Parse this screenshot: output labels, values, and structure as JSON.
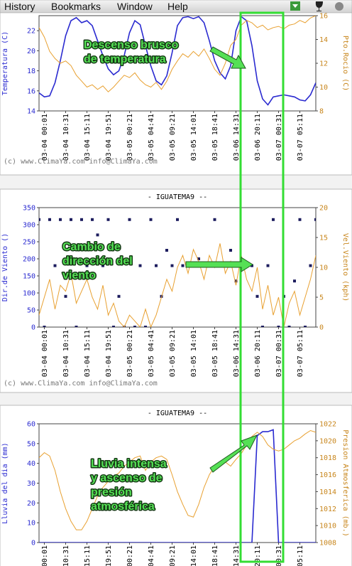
{
  "menu": [
    "History",
    "Bookmarks",
    "Window",
    "Help"
  ],
  "chart_data": [
    {
      "type": "line",
      "footer": "(c) www.ClimaYa.com  info@ClimaYa.com",
      "ylabel": "Temperatura (C)",
      "y2label": "Pto.Rocio (C)",
      "annotation": [
        "Descenso brusco",
        "de temperatura"
      ],
      "xlim": [
        0,
        52
      ],
      "xticks": [
        {
          "value": 1,
          "label": "03-04 00:01"
        },
        {
          "value": 5,
          "label": "03-04 10:31"
        },
        {
          "value": 9,
          "label": "03-04 15:11"
        },
        {
          "value": 13,
          "label": "03-04 19:51"
        },
        {
          "value": 17,
          "label": "03-05 00:21"
        },
        {
          "value": 21,
          "label": "03-05 04:41"
        },
        {
          "value": 25,
          "label": "03-05 09:21"
        },
        {
          "value": 29,
          "label": "03-05 14:01"
        },
        {
          "value": 33,
          "label": "03-05 18:41"
        },
        {
          "value": 37,
          "label": "03-06 14:31"
        },
        {
          "value": 41,
          "label": "03-06 20:11"
        },
        {
          "value": 45,
          "label": "03-07 00:31"
        },
        {
          "value": 49,
          "label": "03-07 05:11"
        }
      ],
      "ylim": [
        14,
        23.5
      ],
      "yticks": [
        14,
        16,
        18,
        20,
        22
      ],
      "y2lim": [
        8,
        16
      ],
      "y2ticks": [
        8,
        10,
        12,
        14,
        16
      ],
      "series": [
        {
          "color": "#2a2ad0",
          "values": [
            15.8,
            15.4,
            15.5,
            16.8,
            19,
            21.5,
            23,
            23.3,
            22.8,
            23,
            22.5,
            21,
            19.5,
            18.2,
            17.6,
            18,
            19.5,
            21.8,
            23,
            22.6,
            20.5,
            18.5,
            17,
            16.6,
            17.5,
            19.8,
            22.5,
            23.3,
            23.4,
            23.2,
            23.4,
            22.8,
            21,
            19,
            17.8,
            17.2,
            18.5,
            22,
            23.4,
            23,
            20.5,
            17,
            15.2,
            14.6,
            15.4,
            15.5,
            15.6,
            15.5,
            15.4,
            15.1,
            15,
            15.6,
            16.8
          ]
        },
        {
          "color": "#e8a030",
          "axis": "y2",
          "values": [
            15,
            14.2,
            13,
            12.4,
            12,
            12.2,
            11.8,
            11,
            10.5,
            10,
            10.2,
            9.8,
            10.1,
            9.6,
            10,
            10.5,
            11,
            10.8,
            11.2,
            10.6,
            10.2,
            10,
            10.4,
            9.8,
            10.5,
            11.5,
            12.2,
            12.8,
            12.5,
            13,
            12.6,
            13.2,
            12.4,
            11.5,
            11,
            12,
            13.5,
            14,
            15.2,
            15.6,
            15.4,
            15,
            15.2,
            14.8,
            15,
            15.1,
            14.9,
            15.2,
            15.3,
            15.6,
            15.4,
            15.8,
            16
          ]
        }
      ]
    },
    {
      "type": "line",
      "title": "- IGUATEMA9 --",
      "footer": "(c) www.ClimaYa.com  info@ClimaYa.com",
      "ylabel": "Dir.de Viento ()",
      "y2label": "Vel.Viento (kph)",
      "annotation": [
        "Cambio de",
        "dirección del",
        "viento"
      ],
      "xlim": [
        0,
        52
      ],
      "xticks": [
        {
          "value": 1,
          "label": "03-04 00:01"
        },
        {
          "value": 5,
          "label": "03-04 10:31"
        },
        {
          "value": 9,
          "label": "03-04 15:11"
        },
        {
          "value": 13,
          "label": "03-04 19:51"
        },
        {
          "value": 17,
          "label": "03-05 00:21"
        },
        {
          "value": 21,
          "label": "03-05 04:41"
        },
        {
          "value": 25,
          "label": "03-05 09:21"
        },
        {
          "value": 29,
          "label": "03-05 14:01"
        },
        {
          "value": 33,
          "label": "03-05 18:41"
        },
        {
          "value": 37,
          "label": "03-06 14:31"
        },
        {
          "value": 41,
          "label": "03-06 20:11"
        },
        {
          "value": 45,
          "label": "03-07 00:31"
        },
        {
          "value": 49,
          "label": "03-07 05:11"
        }
      ],
      "ylim": [
        0,
        350
      ],
      "yticks": [
        0,
        50,
        100,
        150,
        200,
        250,
        300,
        350
      ],
      "y2lim": [
        0,
        20
      ],
      "y2ticks": [
        0,
        5,
        10,
        15,
        20
      ],
      "series": [
        {
          "type": "scatter",
          "color": "#1c1c5e",
          "values": [
            315,
            0,
            315,
            180,
            315,
            90,
            315,
            0,
            315,
            180,
            315,
            270,
            180,
            315,
            0,
            90,
            0,
            315,
            0,
            180,
            0,
            315,
            180,
            90,
            225,
            180,
            315,
            180,
            180,
            180,
            200,
            180,
            180,
            315,
            180,
            180,
            225,
            135,
            180,
            180,
            180,
            90,
            0,
            180,
            315,
            0,
            90,
            0,
            135,
            315,
            0,
            180,
            315
          ]
        },
        {
          "color": "#e8a030",
          "axis": "y2",
          "values": [
            2,
            5,
            8,
            3,
            7,
            6,
            9,
            4,
            6,
            8,
            5,
            3,
            7,
            2,
            4,
            1,
            0,
            2,
            1,
            0,
            3,
            0,
            2,
            5,
            8,
            6,
            10,
            12,
            9,
            13,
            11,
            8,
            12,
            10,
            14,
            9,
            11,
            7,
            12,
            8,
            6,
            10,
            3,
            7,
            2,
            5,
            0,
            4,
            6,
            2,
            5,
            8,
            12
          ]
        }
      ]
    },
    {
      "type": "line",
      "title": "- IGUATEMA9 --",
      "ylabel": "Lluvia del dia (mm)",
      "y2label": "Presion Atmosferica (mb.)",
      "annotation": [
        "Lluvia intensa",
        "y ascenso de",
        "presión",
        "atmosférica"
      ],
      "xlim": [
        0,
        52
      ],
      "xticks": [
        {
          "value": 1,
          "label": "00:01"
        },
        {
          "value": 5,
          "label": "10:31"
        },
        {
          "value": 9,
          "label": "15:11"
        },
        {
          "value": 13,
          "label": "19:51"
        },
        {
          "value": 17,
          "label": "00:21"
        },
        {
          "value": 21,
          "label": "04:41"
        },
        {
          "value": 25,
          "label": "09:21"
        },
        {
          "value": 29,
          "label": "14:01"
        },
        {
          "value": 33,
          "label": "18:41"
        },
        {
          "value": 37,
          "label": "14:31"
        },
        {
          "value": 41,
          "label": "20:11"
        },
        {
          "value": 45,
          "label": "00:31"
        },
        {
          "value": 49,
          "label": "05:11"
        }
      ],
      "ylim": [
        0,
        60
      ],
      "yticks": [
        0,
        10,
        20,
        30,
        40,
        50,
        60
      ],
      "y2lim": [
        1008,
        1022
      ],
      "y2ticks": [
        1008,
        1010,
        1012,
        1014,
        1016,
        1018,
        1020,
        1022
      ],
      "series": [
        {
          "color": "#2a2ad0",
          "values": [
            0,
            0,
            0,
            0,
            0,
            0,
            0,
            0,
            0,
            0,
            0,
            0,
            0,
            0,
            0,
            0,
            0,
            0,
            0,
            0,
            0,
            0,
            0,
            0,
            0,
            0,
            0,
            0,
            0,
            0,
            0,
            0,
            0,
            0,
            0,
            0,
            0,
            0,
            0,
            0,
            0,
            54,
            56,
            56,
            57,
            0,
            0,
            0,
            0,
            0,
            0,
            0,
            0
          ]
        },
        {
          "color": "#e8a030",
          "axis": "y2",
          "values": [
            1018,
            1018.6,
            1018.2,
            1016.5,
            1014,
            1012,
            1010.5,
            1009.5,
            1009.5,
            1010.5,
            1012,
            1013.5,
            1014.5,
            1015.2,
            1015.8,
            1016.2,
            1017,
            1017.5,
            1018,
            1018.2,
            1016.5,
            1017.5,
            1018,
            1018.2,
            1017.8,
            1016,
            1014,
            1012.5,
            1011.2,
            1011,
            1012.5,
            1014.5,
            1016,
            1017,
            1017.2,
            1017.5,
            1017,
            1017.8,
            1018.5,
            1019.5,
            1020.5,
            1021,
            1020.5,
            1019.5,
            1019,
            1018.8,
            1019,
            1019.5,
            1020,
            1020.3,
            1020.8,
            1021.2,
            1021
          ]
        }
      ]
    }
  ]
}
